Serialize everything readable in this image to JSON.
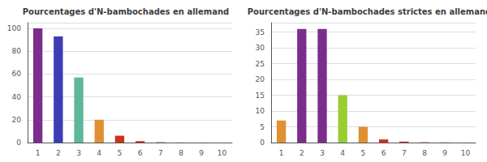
{
  "chart_data": [
    {
      "type": "bar",
      "title": "Pourcentages d'N-bambochades en allemand",
      "categories": [
        "1",
        "2",
        "3",
        "4",
        "5",
        "6",
        "7",
        "8",
        "9",
        "10"
      ],
      "values": [
        100,
        93,
        57,
        20,
        6,
        1.2,
        0.3,
        0.1,
        0.05,
        0.02
      ],
      "colors": [
        "#7b2d8b",
        "#3d3db5",
        "#5db89a",
        "#e09030",
        "#cc3318",
        "#cc2222",
        "#cc2222",
        "#cc2222",
        "#cc2222",
        "#cc2222"
      ],
      "ylim": [
        0,
        105
      ],
      "yticks": [
        0,
        20,
        40,
        60,
        80,
        100
      ],
      "grid": true
    },
    {
      "type": "bar",
      "title": "Pourcentages d'N-bambochades strictes en allemand",
      "categories": [
        "1",
        "2",
        "3",
        "4",
        "5",
        "6",
        "7",
        "8",
        "9",
        "10"
      ],
      "values": [
        7,
        36,
        36,
        15,
        5,
        1,
        0.3,
        0.1,
        0.05,
        0.02
      ],
      "colors": [
        "#e09030",
        "#7b2d8b",
        "#7b2d8b",
        "#9acd32",
        "#e09030",
        "#cc3318",
        "#cc2222",
        "#cc2222",
        "#cc2222",
        "#cc2222"
      ],
      "ylim": [
        0,
        38
      ],
      "yticks": [
        0,
        5,
        10,
        15,
        20,
        25,
        30,
        35
      ],
      "grid": true
    }
  ]
}
